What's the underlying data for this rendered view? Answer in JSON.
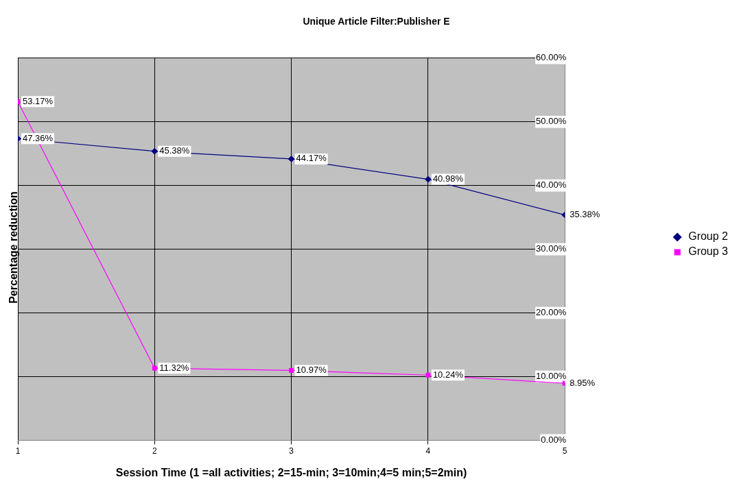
{
  "chart_data": {
    "type": "line",
    "title": "Unique Article Filter:Publisher E",
    "xlabel": "Session Time (1 =all activities; 2=15-min; 3=10min;4=5 min;5=2min)",
    "ylabel": "Percentage reduction",
    "x": [
      1,
      2,
      3,
      4,
      5
    ],
    "series": [
      {
        "name": "Group 2",
        "color": "#000080",
        "marker": "diamond",
        "values": [
          47.36,
          45.38,
          44.17,
          40.98,
          35.38
        ],
        "value_labels": [
          "47.36%",
          "45.38%",
          "44.17%",
          "40.98%",
          "35.38%"
        ]
      },
      {
        "name": "Group 3",
        "color": "#ff00ff",
        "marker": "square",
        "values": [
          53.17,
          11.32,
          10.97,
          10.24,
          8.95
        ],
        "value_labels": [
          "53.17%",
          "11.32%",
          "10.97%",
          "10.24%",
          "8.95%"
        ]
      }
    ],
    "xlim": [
      1,
      5
    ],
    "xticks": [
      1,
      2,
      3,
      4,
      5
    ],
    "ylim": [
      0,
      60
    ],
    "yticks": [
      {
        "value": 0,
        "label": "0.00%"
      },
      {
        "value": 10,
        "label": "10.00%"
      },
      {
        "value": 20,
        "label": "20.00%"
      },
      {
        "value": 30,
        "label": "30.00%"
      },
      {
        "value": 40,
        "label": "40.00%"
      },
      {
        "value": 50,
        "label": "50.00%"
      },
      {
        "value": 60,
        "label": "60.00%"
      }
    ],
    "grid": true,
    "legend": "right",
    "line_style": "solid"
  }
}
